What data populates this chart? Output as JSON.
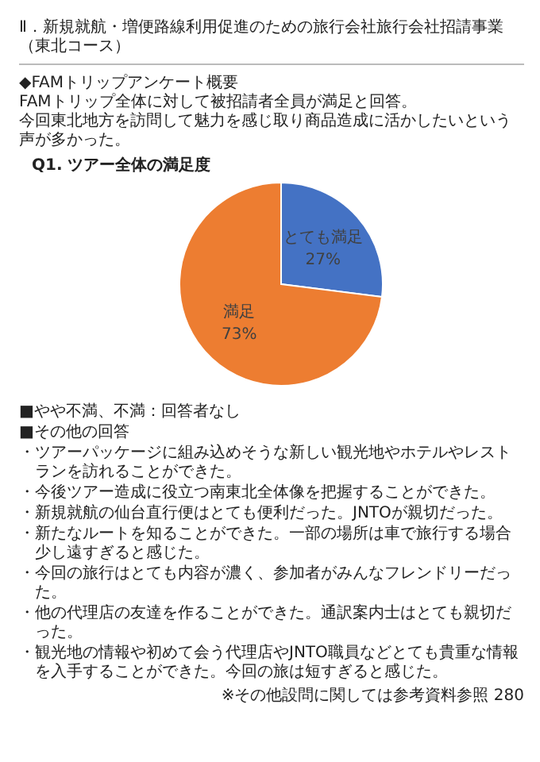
{
  "chart_data": {
    "type": "pie",
    "title": "Q1. ツアー全体の満足度",
    "categories": [
      "とても満足",
      "満足"
    ],
    "values": [
      27,
      73
    ],
    "colors": [
      "#4472c4",
      "#ed7d31"
    ],
    "value_labels": [
      "27%",
      "73%"
    ],
    "annotations": [
      "Ⅱ．新規就航・増便路線利用促進のための旅行会社旅行会社招請事業（東北コース）",
      "◆FAMトリップアンケート概要",
      "FAMトリップ全体に対して被招請者全員が満足と回答。",
      "今回東北地方を訪問して魅力を感じ取り商品造成に活かしたいという声が多かった。",
      "■やや不満、不満：回答者なし",
      "■その他の回答",
      "・ツアーパッケージに組み込めそうな新しい観光地やホテルやレストランを訪れることができた。",
      "・今後ツアー造成に役立つ南東北全体像を把握することができた。",
      "・新規就航の仙台直行便はとても便利だった。JNTOが親切だった。",
      "・新たなルートを知ることができた。一部の場所は車で旅行する場合少し遠すぎると感じた。",
      "・今回の旅行はとても内容が濃く、参加者がみんなフレンドリーだった。",
      "・他の代理店の友達を作ることができた。通訳案内士はとても親切だった。",
      "・観光地の情報や初めて会う代理店やJNTO職員などとても貴重な情報を入手することができた。今回の旅は短すぎると感じた。",
      "※その他設問に関しては参考資料参照",
      "280"
    ]
  }
}
